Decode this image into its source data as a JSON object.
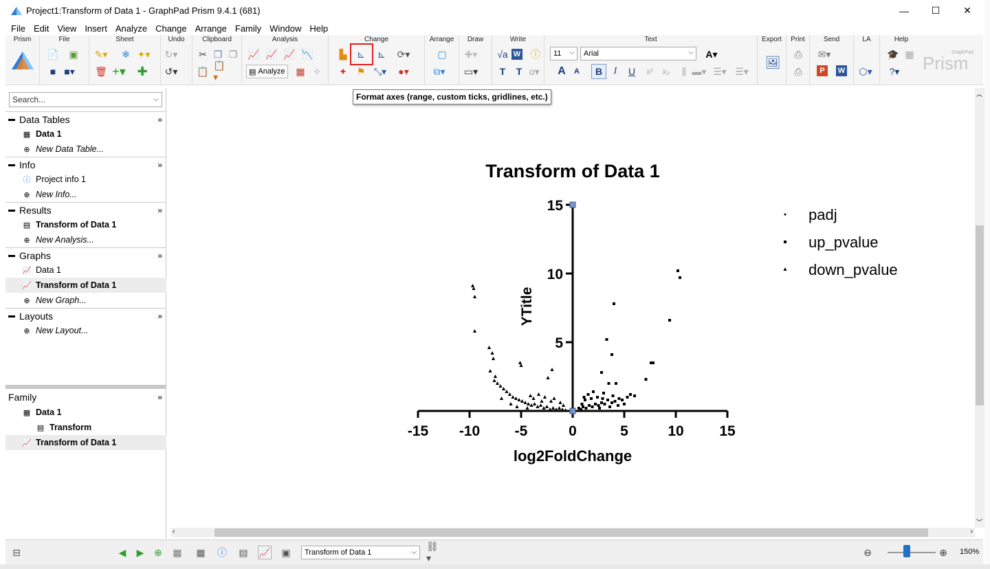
{
  "window": {
    "title": "Project1:Transform of Data 1 - GraphPad Prism 9.4.1 (681)",
    "minimize": "—",
    "maximize": "☐",
    "close": "✕"
  },
  "menu": [
    "File",
    "Edit",
    "View",
    "Insert",
    "Analyze",
    "Change",
    "Arrange",
    "Family",
    "Window",
    "Help"
  ],
  "ribbon": {
    "groups": [
      "Prism",
      "File",
      "Sheet",
      "Undo",
      "Clipboard",
      "Analysis",
      "Change",
      "Arrange",
      "Draw",
      "Write",
      "Text",
      "Export",
      "Print",
      "Send",
      "LA",
      "Help"
    ],
    "analyze_label": "Analyze",
    "font_size": "11",
    "font_name": "Arial",
    "brand_small": "GraphPad",
    "brand": "Prism"
  },
  "tooltip": "Format axes (range, custom ticks, gridlines, etc.)",
  "sidebar": {
    "search_placeholder": "Search...",
    "sections": {
      "data_tables": {
        "title": "Data Tables",
        "items": [
          "Data 1"
        ],
        "new": "New Data Table..."
      },
      "info": {
        "title": "Info",
        "items": [
          "Project info 1"
        ],
        "new": "New Info..."
      },
      "results": {
        "title": "Results",
        "items": [
          "Transform of Data 1"
        ],
        "new": "New Analysis..."
      },
      "graphs": {
        "title": "Graphs",
        "items": [
          "Data 1",
          "Transform of Data 1"
        ],
        "new": "New Graph..."
      },
      "layouts": {
        "title": "Layouts",
        "new": "New Layout..."
      }
    },
    "family": {
      "title": "Family",
      "items": [
        "Data 1",
        "Transform",
        "Transform of Data 1"
      ]
    }
  },
  "statusbar": {
    "sheet_select": "Transform of Data 1",
    "zoom": "150%"
  },
  "chart_data": {
    "type": "scatter",
    "title": "Transform of Data 1",
    "xlabel": "log2FoldChange",
    "ylabel": "YTitle",
    "xlim": [
      -15,
      15
    ],
    "ylim": [
      0,
      15
    ],
    "xticks": [
      "-15",
      "-10",
      "-5",
      "0",
      "5",
      "10",
      "15"
    ],
    "yticks": [
      "5",
      "10",
      "15"
    ],
    "legend": [
      "padj",
      "up_pvalue",
      "down_pvalue"
    ],
    "series": [
      {
        "name": "up_pvalue",
        "marker": "square",
        "points": [
          [
            10.2,
            10.2
          ],
          [
            10.4,
            9.7
          ],
          [
            4.0,
            7.8
          ],
          [
            9.4,
            6.6
          ],
          [
            3.3,
            5.2
          ],
          [
            3.8,
            4.1
          ],
          [
            7.8,
            3.5
          ],
          [
            7.6,
            3.5
          ],
          [
            2.8,
            2.8
          ],
          [
            7.1,
            2.3
          ],
          [
            4.2,
            2.0
          ],
          [
            3.5,
            2.0
          ],
          [
            5.6,
            1.2
          ],
          [
            6.0,
            1.1
          ],
          [
            5.3,
            1.0
          ],
          [
            4.8,
            0.8
          ],
          [
            4.5,
            0.9
          ],
          [
            4.1,
            0.7
          ],
          [
            3.8,
            0.6
          ],
          [
            3.4,
            0.8
          ],
          [
            3.1,
            0.5
          ],
          [
            2.8,
            0.6
          ],
          [
            2.5,
            0.4
          ],
          [
            2.2,
            0.5
          ],
          [
            1.9,
            0.3
          ],
          [
            1.6,
            0.4
          ],
          [
            1.3,
            0.2
          ],
          [
            1.0,
            0.3
          ],
          [
            0.8,
            0.1
          ],
          [
            0.6,
            0.2
          ],
          [
            1.5,
            1.2
          ],
          [
            2.0,
            1.4
          ],
          [
            2.4,
            1.0
          ],
          [
            3.0,
            1.3
          ],
          [
            1.2,
            0.8
          ],
          [
            0.9,
            0.5
          ],
          [
            2.6,
            0.2
          ],
          [
            3.6,
            0.3
          ],
          [
            4.4,
            0.4
          ],
          [
            5.0,
            0.5
          ],
          [
            1.8,
            0.9
          ],
          [
            2.9,
            0.9
          ],
          [
            1.1,
            1.0
          ],
          [
            3.9,
            1.1
          ]
        ]
      },
      {
        "name": "down_pvalue",
        "marker": "triangle",
        "points": [
          [
            -9.7,
            9.1
          ],
          [
            -9.6,
            8.9
          ],
          [
            -9.5,
            8.3
          ],
          [
            -9.5,
            5.8
          ],
          [
            -8.1,
            4.6
          ],
          [
            -7.8,
            4.2
          ],
          [
            -7.7,
            3.8
          ],
          [
            -5.1,
            3.5
          ],
          [
            -5.0,
            3.3
          ],
          [
            -2.0,
            3.0
          ],
          [
            -8.0,
            2.9
          ],
          [
            -7.5,
            2.5
          ],
          [
            -2.4,
            2.4
          ],
          [
            -7.6,
            2.2
          ],
          [
            -7.3,
            2.0
          ],
          [
            -7.0,
            1.8
          ],
          [
            -6.7,
            1.6
          ],
          [
            -6.4,
            1.4
          ],
          [
            -6.1,
            1.2
          ],
          [
            -5.8,
            1.0
          ],
          [
            -5.5,
            0.9
          ],
          [
            -5.2,
            0.8
          ],
          [
            -4.9,
            0.7
          ],
          [
            -4.6,
            0.6
          ],
          [
            -4.3,
            0.5
          ],
          [
            -4.0,
            0.4
          ],
          [
            -3.7,
            0.5
          ],
          [
            -3.4,
            0.3
          ],
          [
            -3.1,
            0.4
          ],
          [
            -2.8,
            0.2
          ],
          [
            -2.5,
            0.3
          ],
          [
            -2.2,
            0.1
          ],
          [
            -1.9,
            0.2
          ],
          [
            -1.6,
            0.1
          ],
          [
            -1.3,
            0.2
          ],
          [
            -1.0,
            0.1
          ],
          [
            -0.7,
            0.05
          ],
          [
            -4.1,
            1.1
          ],
          [
            -3.3,
            1.2
          ],
          [
            -2.7,
            1.0
          ],
          [
            -1.8,
            0.9
          ],
          [
            -3.8,
            0.9
          ],
          [
            -5.4,
            0.3
          ],
          [
            -6.0,
            0.5
          ],
          [
            -4.4,
            0.2
          ],
          [
            -1.2,
            0.6
          ],
          [
            -2.1,
            0.7
          ],
          [
            -0.9,
            0.4
          ],
          [
            -3.0,
            0.7
          ],
          [
            -6.9,
            0.9
          ]
        ]
      }
    ]
  }
}
